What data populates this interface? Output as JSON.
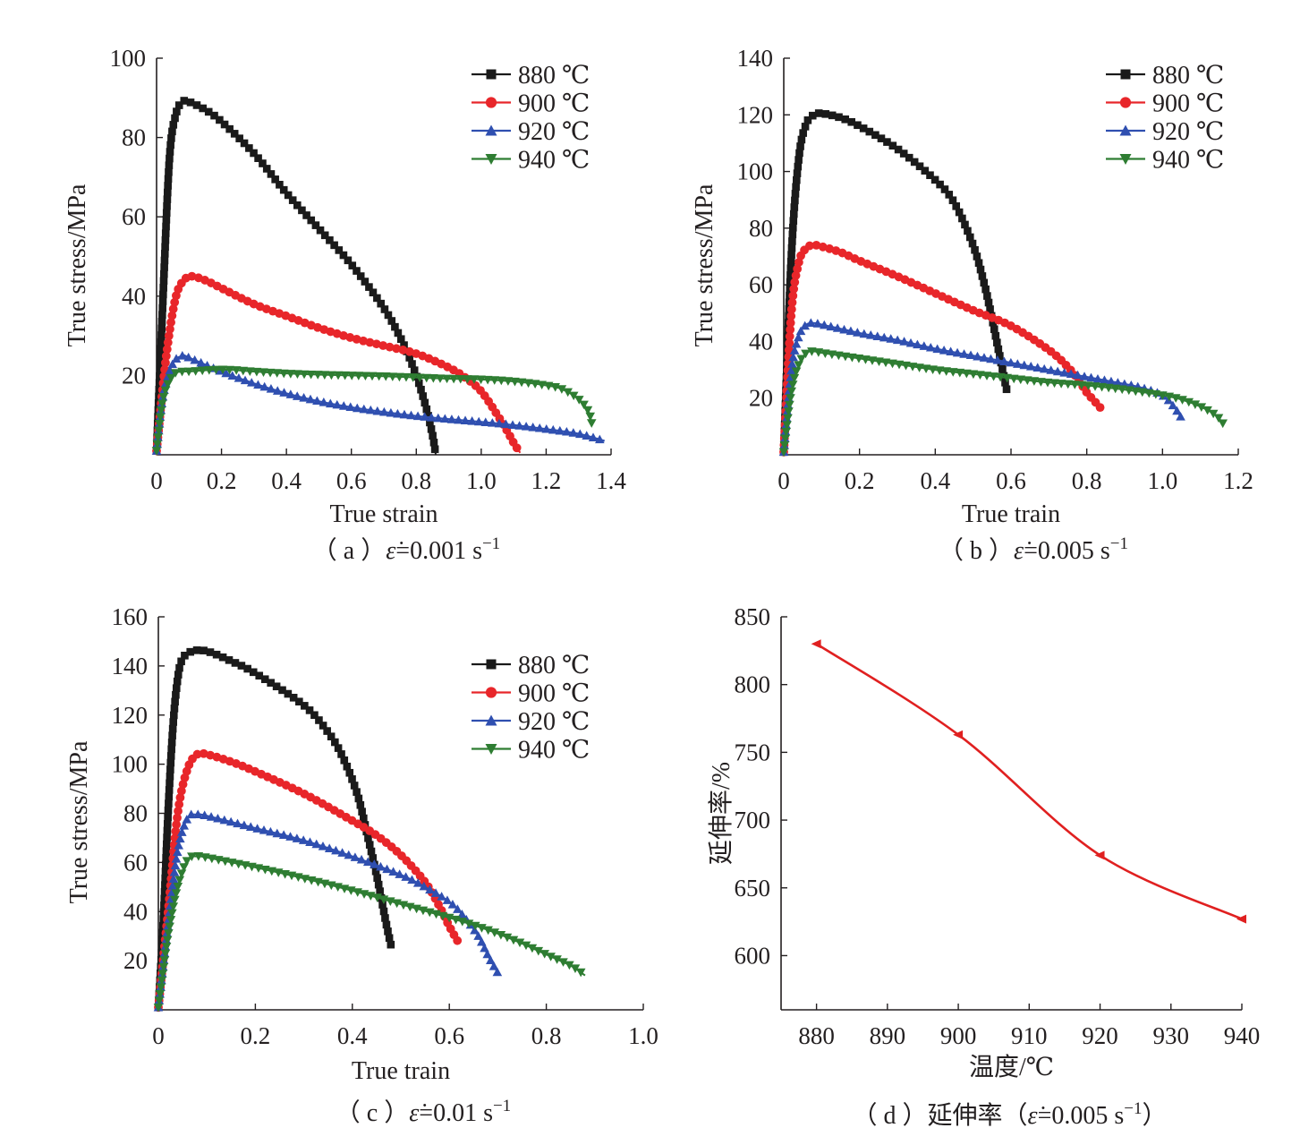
{
  "colors": {
    "880": "#1a1a1a",
    "900": "#e8262a",
    "920": "#2f4fb0",
    "940": "#2e7d32",
    "elong": "#e02020",
    "axis": "#231f20"
  },
  "chart_data": [
    {
      "id": "a",
      "type": "line",
      "caption_prefix": "（ a ）",
      "caption_rate": "=0.001 s",
      "caption_exp": "−1",
      "xlabel": "True strain",
      "ylabel": "True stress/MPa",
      "xlim": [
        0,
        1.4
      ],
      "ylim": [
        0,
        100
      ],
      "xticks": [
        0,
        0.2,
        0.4,
        0.6,
        0.8,
        1.0,
        1.2,
        1.4
      ],
      "xtick_labels": [
        "0",
        "0.2",
        "0.4",
        "0.6",
        "0.8",
        "1.0",
        "1.2",
        "1.4"
      ],
      "yticks": [
        20,
        40,
        60,
        80,
        100
      ],
      "ytick_labels": [
        "20",
        "40",
        "60",
        "80",
        "100"
      ],
      "legend_position": "top-right",
      "series": [
        {
          "name": "880 ℃",
          "marker": "square",
          "color": "#1a1a1a",
          "x": [
            0,
            0.02,
            0.04,
            0.06,
            0.08,
            0.1,
            0.15,
            0.2,
            0.3,
            0.4,
            0.5,
            0.6,
            0.7,
            0.76,
            0.8,
            0.83,
            0.85,
            0.86
          ],
          "y": [
            1,
            40,
            75,
            86,
            89,
            89,
            87,
            84,
            76,
            66,
            57,
            48,
            37,
            28,
            20,
            12,
            5,
            0
          ]
        },
        {
          "name": "900 ℃",
          "marker": "circle",
          "color": "#e8262a",
          "x": [
            0,
            0.03,
            0.06,
            0.09,
            0.11,
            0.15,
            0.2,
            0.3,
            0.4,
            0.5,
            0.6,
            0.7,
            0.8,
            0.9,
            0.95,
            1.0,
            1.05,
            1.08,
            1.1,
            1.12
          ],
          "y": [
            1,
            25,
            40,
            44.5,
            45,
            44,
            42,
            38,
            35,
            32,
            29.5,
            27.5,
            25.5,
            22,
            19.5,
            16,
            10,
            6,
            3,
            0.5
          ]
        },
        {
          "name": "920 ℃",
          "marker": "triangle-up",
          "color": "#2f4fb0",
          "x": [
            0,
            0.02,
            0.05,
            0.08,
            0.1,
            0.2,
            0.3,
            0.4,
            0.5,
            0.6,
            0.7,
            0.8,
            0.9,
            1.0,
            1.1,
            1.2,
            1.3,
            1.38
          ],
          "y": [
            1,
            15,
            23,
            25,
            24.5,
            21,
            18,
            15.5,
            13.5,
            12,
            10.8,
            9.8,
            9,
            8.3,
            7.5,
            6.5,
            5.3,
            3.5
          ]
        },
        {
          "name": "940 ℃",
          "marker": "triangle-down",
          "color": "#2e7d32",
          "x": [
            0,
            0.02,
            0.05,
            0.08,
            0.1,
            0.2,
            0.3,
            0.4,
            0.5,
            0.6,
            0.7,
            0.8,
            0.9,
            1.0,
            1.1,
            1.2,
            1.25,
            1.3,
            1.33,
            1.34
          ],
          "y": [
            1,
            14,
            20,
            21,
            21,
            21.5,
            21,
            20.5,
            20.2,
            20,
            19.8,
            19.5,
            19.2,
            19,
            18.5,
            17.5,
            16.5,
            14,
            11,
            8
          ]
        }
      ]
    },
    {
      "id": "b",
      "type": "line",
      "caption_prefix": "（ b ）",
      "caption_rate": "=0.005 s",
      "caption_exp": "−1",
      "xlabel": "True train",
      "ylabel": "True stress/MPa",
      "xlim": [
        0,
        1.2
      ],
      "ylim": [
        0,
        140
      ],
      "xticks": [
        0,
        0.2,
        0.4,
        0.6,
        0.8,
        1.0,
        1.2
      ],
      "xtick_labels": [
        "0",
        "0.2",
        "0.4",
        "0.6",
        "0.8",
        "1.0",
        "1.2"
      ],
      "yticks": [
        20,
        40,
        60,
        80,
        100,
        120,
        140
      ],
      "ytick_labels": [
        "20",
        "40",
        "60",
        "80",
        "100",
        "120",
        "140"
      ],
      "legend_position": "top-right",
      "series": [
        {
          "name": "880 ℃",
          "marker": "square",
          "color": "#1a1a1a",
          "x": [
            0,
            0.02,
            0.04,
            0.06,
            0.08,
            0.1,
            0.15,
            0.2,
            0.3,
            0.4,
            0.45,
            0.5,
            0.53,
            0.55,
            0.57,
            0.59
          ],
          "y": [
            1,
            70,
            105,
            117,
            120,
            120.5,
            119,
            116,
            108,
            97,
            89,
            74,
            60,
            48,
            35,
            22
          ]
        },
        {
          "name": "900 ℃",
          "marker": "circle",
          "color": "#e8262a",
          "x": [
            0,
            0.02,
            0.04,
            0.06,
            0.08,
            0.1,
            0.15,
            0.2,
            0.3,
            0.4,
            0.5,
            0.6,
            0.7,
            0.75,
            0.78,
            0.8,
            0.82,
            0.84
          ],
          "y": [
            1,
            50,
            68,
            73,
            74,
            73.5,
            71.5,
            68.5,
            63,
            57,
            51,
            45.5,
            37,
            31,
            26,
            22,
            19,
            16
          ]
        },
        {
          "name": "920 ℃",
          "marker": "triangle-up",
          "color": "#2f4fb0",
          "x": [
            0,
            0.02,
            0.04,
            0.06,
            0.08,
            0.1,
            0.2,
            0.3,
            0.4,
            0.5,
            0.6,
            0.7,
            0.8,
            0.9,
            0.95,
            1.0,
            1.03,
            1.05
          ],
          "y": [
            1,
            30,
            42,
            46,
            46.5,
            46,
            43,
            40.5,
            37.5,
            35,
            32.5,
            30,
            27.5,
            25,
            23.5,
            21,
            17,
            13
          ]
        },
        {
          "name": "940 ℃",
          "marker": "triangle-down",
          "color": "#2e7d32",
          "x": [
            0,
            0.02,
            0.04,
            0.06,
            0.08,
            0.1,
            0.2,
            0.3,
            0.4,
            0.5,
            0.6,
            0.7,
            0.8,
            0.9,
            1.0,
            1.05,
            1.1,
            1.14,
            1.16
          ],
          "y": [
            1,
            22,
            32,
            36,
            36.5,
            36,
            34,
            32,
            30,
            28.5,
            27,
            25.5,
            24.5,
            23,
            21,
            19.5,
            17,
            14,
            11
          ]
        }
      ]
    },
    {
      "id": "c",
      "type": "line",
      "caption_prefix": "（ c ）",
      "caption_rate": "=0.01 s",
      "caption_exp": "−1",
      "xlabel": "True train",
      "ylabel": "True stress/MPa",
      "xlim": [
        0,
        1.0
      ],
      "ylim": [
        0,
        160
      ],
      "xticks": [
        0,
        0.2,
        0.4,
        0.6,
        0.8,
        1.0
      ],
      "xtick_labels": [
        "0",
        "0.2",
        "0.4",
        "0.6",
        "0.8",
        "1.0"
      ],
      "yticks": [
        20,
        40,
        60,
        80,
        100,
        120,
        140,
        160
      ],
      "ytick_labels": [
        "20",
        "40",
        "60",
        "80",
        "100",
        "120",
        "140",
        "160"
      ],
      "legend_position": "top-right",
      "series": [
        {
          "name": "880 ℃",
          "marker": "square",
          "color": "#1a1a1a",
          "x": [
            0,
            0.01,
            0.02,
            0.03,
            0.04,
            0.05,
            0.07,
            0.1,
            0.15,
            0.2,
            0.3,
            0.35,
            0.38,
            0.41,
            0.43,
            0.45,
            0.47,
            0.48
          ],
          "y": [
            1,
            35,
            80,
            115,
            135,
            143,
            146,
            146,
            142,
            137,
            124,
            113,
            103,
            88,
            72,
            55,
            35,
            26
          ]
        },
        {
          "name": "900 ℃",
          "marker": "circle",
          "color": "#e8262a",
          "x": [
            0,
            0.02,
            0.04,
            0.06,
            0.08,
            0.1,
            0.15,
            0.2,
            0.3,
            0.4,
            0.45,
            0.5,
            0.55,
            0.58,
            0.6,
            0.62
          ],
          "y": [
            1,
            40,
            80,
            98,
            104,
            104,
            101,
            97,
            88,
            77,
            71,
            63,
            52,
            42,
            34,
            27
          ]
        },
        {
          "name": "920 ℃",
          "marker": "triangle-up",
          "color": "#2f4fb0",
          "x": [
            0,
            0.02,
            0.04,
            0.06,
            0.08,
            0.1,
            0.2,
            0.3,
            0.4,
            0.5,
            0.55,
            0.6,
            0.63,
            0.66,
            0.68,
            0.7
          ],
          "y": [
            1,
            35,
            65,
            78,
            79.5,
            79,
            74,
            69,
            62.5,
            55,
            50,
            44,
            38,
            30,
            22,
            15
          ]
        },
        {
          "name": "940 ℃",
          "marker": "triangle-down",
          "color": "#2e7d32",
          "x": [
            0,
            0.02,
            0.04,
            0.06,
            0.08,
            0.1,
            0.2,
            0.3,
            0.4,
            0.5,
            0.6,
            0.65,
            0.7,
            0.75,
            0.8,
            0.85,
            0.88
          ],
          "y": [
            1,
            30,
            50,
            61,
            62.5,
            62,
            58,
            53.5,
            48.5,
            43,
            37.5,
            34.5,
            31,
            27,
            22.5,
            18,
            14
          ]
        }
      ]
    },
    {
      "id": "d",
      "type": "line",
      "caption_prefix": "（ d ）延伸率（",
      "caption_rate": "=0.005 s",
      "caption_exp": "−1",
      "caption_suffix": "）",
      "xlabel": "温度/℃",
      "ylabel": "延伸率/%",
      "xlim": [
        875,
        940
      ],
      "ylim": [
        560,
        850
      ],
      "xticks": [
        880,
        890,
        900,
        910,
        920,
        930,
        940
      ],
      "xtick_labels": [
        "880",
        "890",
        "900",
        "910",
        "920",
        "930",
        "940"
      ],
      "yticks": [
        600,
        650,
        700,
        750,
        800,
        850
      ],
      "ytick_labels": [
        "600",
        "650",
        "700",
        "750",
        "800",
        "850"
      ],
      "series": [
        {
          "name": "",
          "marker": "triangle-left",
          "color": "#e02020",
          "x": [
            880,
            900,
            920,
            940
          ],
          "y": [
            830,
            763,
            674,
            627
          ]
        }
      ]
    }
  ]
}
